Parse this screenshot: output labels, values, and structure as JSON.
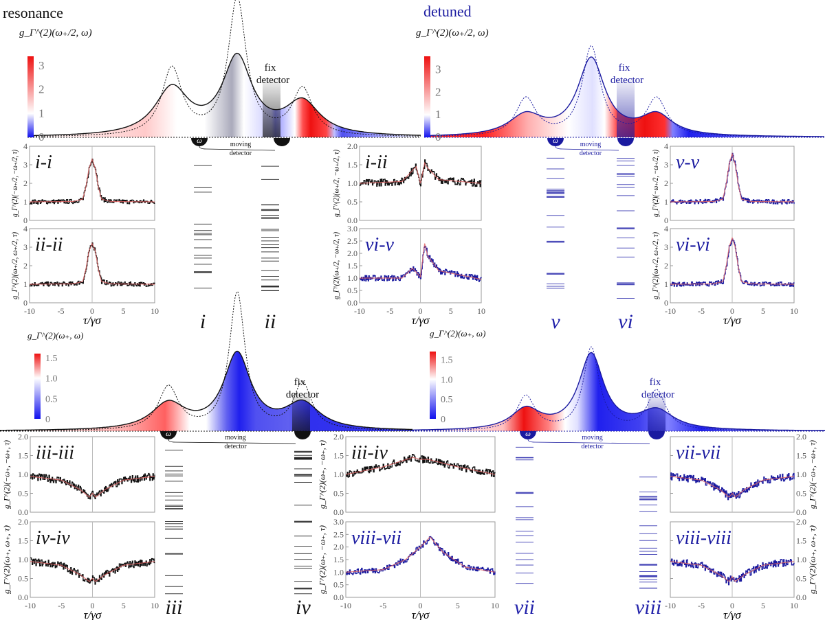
{
  "titles": {
    "resonance": "resonance",
    "detuned": "detuned"
  },
  "colors": {
    "black": "#111111",
    "blue": "#1a1aa0",
    "fit": "#e06060",
    "red": "#ee1111",
    "blue_map": "#1111ee"
  },
  "spectra": [
    {
      "id": "top-left",
      "colorbar_label": "g_Γ^(2)(ω₊/2, ω)",
      "colorbar_ticks": [
        "0",
        "1",
        "2",
        "3"
      ],
      "colorbar_range": [
        0,
        3.4
      ],
      "fix_label": [
        "fix",
        "detector"
      ],
      "moving_label": [
        "moving",
        "detector"
      ],
      "detector_symbol": "ω",
      "line_color": "#111111"
    },
    {
      "id": "top-right",
      "colorbar_label": "g_Γ^(2)(ω₊/2, ω)",
      "colorbar_ticks": [
        "0",
        "1",
        "2",
        "3"
      ],
      "colorbar_range": [
        0,
        3.6
      ],
      "fix_label": [
        "fix",
        "detector"
      ],
      "moving_label": [
        "moving",
        "detector"
      ],
      "detector_symbol": "ω",
      "line_color": "#1a1aa0"
    },
    {
      "id": "bottom-left",
      "colorbar_label": "g_Γ^(2)(ω₊, ω)",
      "colorbar_ticks": [
        "0",
        "0.5",
        "1.0",
        "1.5"
      ],
      "colorbar_range": [
        0,
        1.6
      ],
      "fix_label": [
        "fix",
        "detector"
      ],
      "moving_label": [
        "moving",
        "detector"
      ],
      "detector_symbol": "ω",
      "line_color": "#111111"
    },
    {
      "id": "bottom-right",
      "colorbar_label": "g_Γ^(2)(ω₊, ω)",
      "colorbar_ticks": [
        "0",
        "0.5",
        "1.0",
        "1.5"
      ],
      "colorbar_range": [
        0,
        1.7
      ],
      "fix_label": [
        "fix",
        "detector"
      ],
      "moving_label": [
        "moving",
        "detector"
      ],
      "detector_symbol": "ω",
      "line_color": "#1a1aa0"
    }
  ],
  "level_labels": [
    "i",
    "ii",
    "v",
    "vi",
    "iii",
    "iv",
    "vii",
    "viii"
  ],
  "chart_data": [
    {
      "type": "line",
      "panel": "i-i",
      "color": "#111111",
      "xlim": [
        -10,
        10
      ],
      "ylim": [
        0,
        4
      ],
      "yticks": [
        "0",
        "1",
        "2",
        "3",
        "4"
      ],
      "xticks": [
        "-10",
        "-5",
        "0",
        "5",
        "10"
      ],
      "xlabel": "τ/γσ",
      "ylabel": "g_Γ^(2)(−ω₊/2, −ω₊/2, τ)",
      "fit": {
        "x": [
          -10,
          -3,
          -1.5,
          -1,
          -0.5,
          0,
          0.5,
          1,
          1.5,
          3,
          10
        ],
        "y": [
          1,
          1.02,
          1.15,
          1.8,
          2.8,
          3.3,
          2.8,
          1.8,
          1.15,
          1.02,
          1
        ]
      }
    },
    {
      "type": "line",
      "panel": "ii-ii",
      "color": "#111111",
      "xlim": [
        -10,
        10
      ],
      "ylim": [
        0,
        4
      ],
      "yticks": [
        "0",
        "1",
        "2",
        "3",
        "4"
      ],
      "xticks": [
        "-10",
        "-5",
        "0",
        "5",
        "10"
      ],
      "xlabel": "τ/γσ",
      "ylabel": "g_Γ^(2)(ω₊/2, ω₊/2, τ)",
      "fit": {
        "x": [
          -10,
          -3,
          -1.5,
          -1,
          -0.5,
          0,
          0.5,
          1,
          1.5,
          3,
          10
        ],
        "y": [
          1,
          1.02,
          1.15,
          1.8,
          2.8,
          3.2,
          2.8,
          1.8,
          1.15,
          1.02,
          1
        ]
      }
    },
    {
      "type": "line",
      "panel": "i-ii",
      "color": "#111111",
      "xlim": [
        -10,
        10
      ],
      "ylim": [
        0,
        2
      ],
      "yticks": [
        "0.0",
        "0.5",
        "1.0",
        "1.5",
        "2.0"
      ],
      "xticks": [
        "-10",
        "-5",
        "0",
        "5",
        "10"
      ],
      "xlabel": "τ/γσ",
      "ylabel": "g_Γ^(2)(ω₊/2, −ω₊/2, τ)",
      "fit": {
        "x": [
          -10,
          -3,
          -1,
          -0.7,
          0,
          0.7,
          1,
          3,
          10
        ],
        "y": [
          1,
          1.05,
          1.4,
          1.45,
          1.0,
          1.55,
          1.45,
          1.1,
          1
        ]
      }
    },
    {
      "type": "line",
      "panel": "vi-v",
      "color": "#1a1aa0",
      "xlim": [
        -10,
        10
      ],
      "ylim": [
        0,
        3
      ],
      "yticks": [
        "0.0",
        "0.5",
        "1.0",
        "1.5",
        "2.0",
        "2.5",
        "3.0"
      ],
      "xticks": [
        "-10",
        "-5",
        "0",
        "5",
        "10"
      ],
      "xlabel": "τ/γσ",
      "ylabel": "g_Γ^(2)(ω₊/2, −ω₊/2, τ)",
      "fit": {
        "x": [
          -10,
          -3,
          -1.3,
          0,
          0.7,
          1.2,
          3,
          10
        ],
        "y": [
          1,
          1.0,
          1.4,
          1.05,
          2.4,
          1.9,
          1.3,
          0.95
        ]
      }
    },
    {
      "type": "line",
      "panel": "v-v",
      "color": "#1a1aa0",
      "xlim": [
        -10,
        10
      ],
      "ylim": [
        0,
        4
      ],
      "yticks": [
        "0",
        "1",
        "2",
        "3",
        "4"
      ],
      "xticks": [
        "-10",
        "-5",
        "0",
        "5",
        "10"
      ],
      "xlabel": "τ/γσ",
      "ylabel": "g_Γ^(2)(−ω₊/2, −ω₊/2, τ)",
      "fit": {
        "x": [
          -10,
          -3,
          -1.5,
          -1,
          -0.5,
          0,
          0.5,
          1,
          1.5,
          3,
          10
        ],
        "y": [
          1,
          1.02,
          1.15,
          1.9,
          3.0,
          3.6,
          3.0,
          1.9,
          1.15,
          1.02,
          1
        ]
      }
    },
    {
      "type": "line",
      "panel": "vi-vi",
      "color": "#1a1aa0",
      "xlim": [
        -10,
        10
      ],
      "ylim": [
        0,
        4
      ],
      "yticks": [
        "0",
        "1",
        "2",
        "3",
        "4"
      ],
      "xticks": [
        "-10",
        "-5",
        "0",
        "5",
        "10"
      ],
      "xlabel": "τ/γσ",
      "ylabel": "g_Γ^(2)(ω₊/2, ω₊/2, τ)",
      "fit": {
        "x": [
          -10,
          -3,
          -1.5,
          -1,
          -0.5,
          0,
          0.5,
          1,
          1.5,
          3,
          10
        ],
        "y": [
          1,
          1.02,
          1.15,
          1.9,
          3.0,
          3.5,
          3.0,
          1.9,
          1.15,
          1.02,
          1
        ]
      }
    },
    {
      "type": "line",
      "panel": "iii-iii",
      "color": "#111111",
      "xlim": [
        -10,
        10
      ],
      "ylim": [
        0,
        2
      ],
      "yticks": [
        "0.0",
        "0.5",
        "1.0",
        "1.5",
        "2.0"
      ],
      "xticks": [
        "-10",
        "-5",
        "0",
        "5",
        "10"
      ],
      "xlabel": "τ/γσ",
      "ylabel": "g_Γ^(2)(−ω₊, −ω₊, τ)",
      "fit": {
        "x": [
          -10,
          -5,
          -2,
          -0.5,
          0,
          0.5,
          2,
          5,
          10
        ],
        "y": [
          0.95,
          0.85,
          0.6,
          0.4,
          0.5,
          0.4,
          0.6,
          0.85,
          0.95
        ]
      }
    },
    {
      "type": "line",
      "panel": "iv-iv",
      "color": "#111111",
      "xlim": [
        -10,
        10
      ],
      "ylim": [
        0,
        2
      ],
      "yticks": [
        "0.0",
        "0.5",
        "1.0",
        "1.5",
        "2.0"
      ],
      "xticks": [
        "-10",
        "-5",
        "0",
        "5",
        "10"
      ],
      "xlabel": "τ/γσ",
      "ylabel": "g_Γ^(2)(ω₊, ω₊, τ)",
      "fit": {
        "x": [
          -10,
          -5,
          -2,
          -0.5,
          0,
          0.5,
          2,
          5,
          10
        ],
        "y": [
          0.95,
          0.85,
          0.6,
          0.42,
          0.5,
          0.42,
          0.6,
          0.85,
          0.95
        ]
      }
    },
    {
      "type": "line",
      "panel": "iii-iv",
      "color": "#111111",
      "xlim": [
        -10,
        10
      ],
      "ylim": [
        0,
        2
      ],
      "yticks": [
        "0.0",
        "0.5",
        "1.0",
        "1.5",
        "2.0"
      ],
      "xticks": [
        "-10",
        "-5",
        "0",
        "5",
        "10"
      ],
      "xlabel": "τ/γσ",
      "ylabel": "g_Γ^(2)(ω₊, −ω₊, τ)",
      "fit": {
        "x": [
          -10,
          -5,
          -1,
          0,
          1,
          5,
          10
        ],
        "y": [
          1.0,
          1.2,
          1.45,
          1.4,
          1.4,
          1.2,
          1.0
        ]
      }
    },
    {
      "type": "line",
      "panel": "viii-vii",
      "color": "#1a1aa0",
      "xlim": [
        -10,
        10
      ],
      "ylim": [
        0,
        3
      ],
      "yticks": [
        "0.0",
        "0.5",
        "1.0",
        "1.5",
        "2.0",
        "2.5",
        "3.0"
      ],
      "xticks": [
        "-10",
        "-5",
        "0",
        "5",
        "10"
      ],
      "xlabel": "τ/γσ",
      "ylabel": "g_Γ^(2)(ω₊, −ω₊, τ)",
      "fit": {
        "x": [
          -10,
          -5,
          -2,
          0,
          1.3,
          3,
          6,
          10
        ],
        "y": [
          1.0,
          1.1,
          1.5,
          2.0,
          2.4,
          1.8,
          1.2,
          1.0
        ]
      }
    },
    {
      "type": "line",
      "panel": "vii-vii",
      "color": "#1a1aa0",
      "xlim": [
        -10,
        10
      ],
      "ylim": [
        0,
        2
      ],
      "yticks": [
        "0.0",
        "0.5",
        "1.0",
        "1.5",
        "2.0"
      ],
      "xticks": [
        "-10",
        "-5",
        "0",
        "5",
        "10"
      ],
      "xlabel": "τ/γσ",
      "ylabel": "g_Γ^(2)(−ω₊, −ω₊, τ)",
      "fit": {
        "x": [
          -10,
          -5,
          -2,
          -0.5,
          0,
          0.5,
          2,
          5,
          10
        ],
        "y": [
          0.95,
          0.85,
          0.6,
          0.4,
          0.5,
          0.4,
          0.6,
          0.85,
          0.95
        ]
      }
    },
    {
      "type": "line",
      "panel": "viii-viii",
      "color": "#1a1aa0",
      "xlim": [
        -10,
        10
      ],
      "ylim": [
        0,
        2
      ],
      "yticks": [
        "0.0",
        "0.5",
        "1.0",
        "1.5",
        "2.0"
      ],
      "xticks": [
        "-10",
        "-5",
        "0",
        "5",
        "10"
      ],
      "xlabel": "τ/γσ",
      "ylabel": "g_Γ^(2)(ω₊, ω₊, τ)",
      "fit": {
        "x": [
          -10,
          -5,
          -2,
          -0.5,
          0,
          0.5,
          2,
          5,
          10
        ],
        "y": [
          0.95,
          0.85,
          0.6,
          0.42,
          0.55,
          0.42,
          0.6,
          0.85,
          0.95
        ]
      }
    }
  ]
}
